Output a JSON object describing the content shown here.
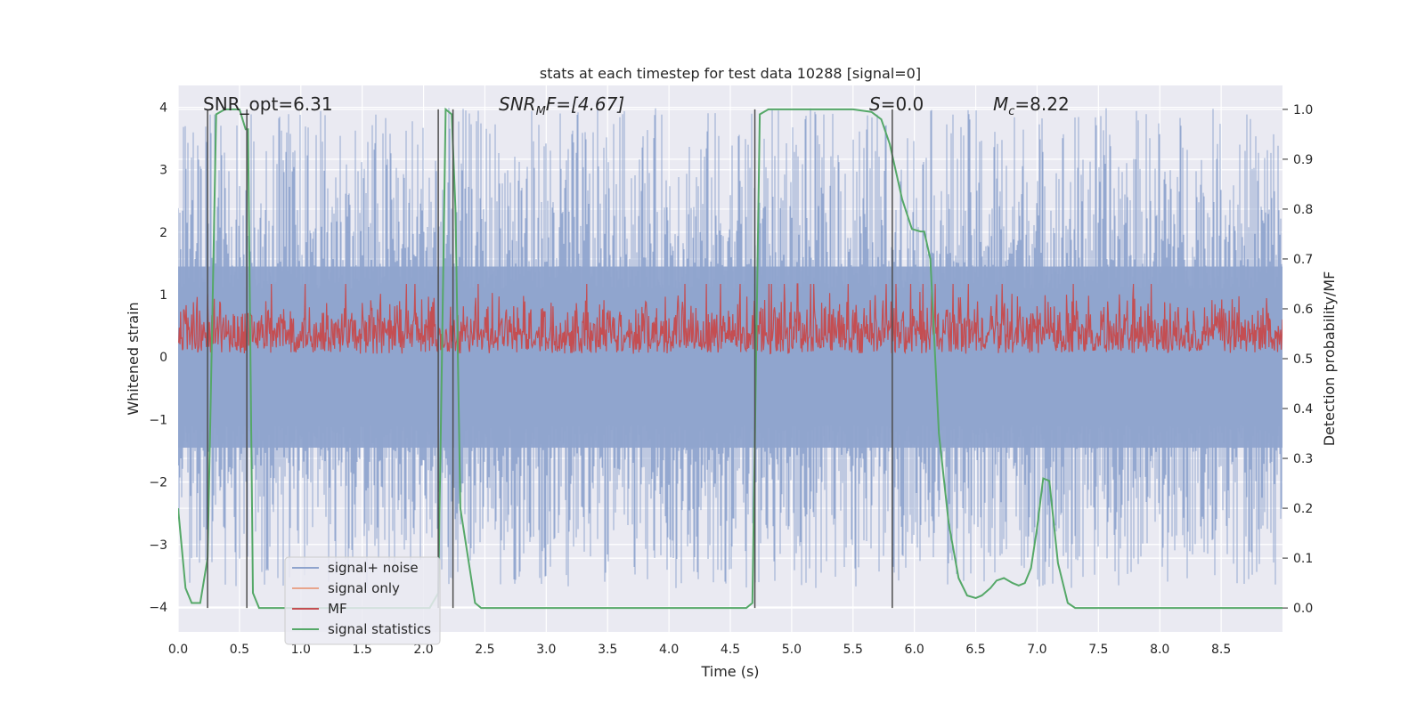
{
  "chart_data": {
    "type": "line",
    "title": "stats at each timestep for test data 10288 [signal=0]",
    "xlabel": "Time (s)",
    "ylabel": "Whitened strain",
    "y2label": "Detection probability/MF",
    "xlim": [
      0,
      9
    ],
    "ylim": [
      -4.4,
      4.35
    ],
    "y2lim": [
      -0.048,
      1.048
    ],
    "xticks": [
      "0.0",
      "0.5",
      "1.0",
      "1.5",
      "2.0",
      "2.5",
      "3.0",
      "3.5",
      "4.0",
      "4.5",
      "5.0",
      "5.5",
      "6.0",
      "6.5",
      "7.0",
      "7.5",
      "8.0",
      "8.5"
    ],
    "yticks": [
      "4",
      "3",
      "2",
      "1",
      "0",
      "−1",
      "−2",
      "−3",
      "−4"
    ],
    "y2ticks": [
      "1.0",
      "0.9",
      "0.8",
      "0.7",
      "0.6",
      "0.5",
      "0.4",
      "0.3",
      "0.2",
      "0.1",
      "0.0"
    ],
    "grid": true,
    "legend_position": "lower-left",
    "annotations": {
      "snr_opt": "SNR_opt=6.31",
      "snr_mf": {
        "main": "SNR",
        "sub": "M",
        "rest": "F=[4.67]"
      },
      "s_value": {
        "main": "S",
        "rest": "=0.0"
      },
      "mc_value": {
        "main": "M",
        "sub": "c",
        "rest": "=8.22"
      }
    },
    "colors": {
      "noise": "#8fa4cd",
      "signal": "#e8a58c",
      "mf": "#c44e52",
      "stats": "#55a868",
      "vline": "#4d4d4d",
      "background": "#eaeaf2",
      "grid": "#ffffff"
    },
    "series": [
      {
        "name": "signal+ noise",
        "kind": "noise",
        "amplitude_range": [
          -3.7,
          4.0
        ]
      },
      {
        "name": "signal only",
        "kind": "signal",
        "values": []
      },
      {
        "name": "MF",
        "kind": "mf",
        "axis": "y2",
        "mean": 0.545,
        "amplitude_range": [
          0.51,
          0.64
        ]
      },
      {
        "name": "signal statistics",
        "kind": "stats",
        "axis": "y2",
        "x": [
          0.0,
          0.06,
          0.11,
          0.18,
          0.24,
          0.28,
          0.31,
          0.38,
          0.5,
          0.55,
          0.57,
          0.61,
          0.66,
          1.0,
          2.05,
          2.12,
          2.15,
          2.18,
          2.23,
          2.26,
          2.3,
          2.42,
          2.47,
          2.5,
          3.0,
          4.0,
          4.5,
          4.63,
          4.68,
          4.74,
          4.81,
          5.0,
          5.5,
          5.65,
          5.73,
          5.8,
          5.9,
          5.98,
          6.05,
          6.08,
          6.13,
          6.2,
          6.28,
          6.36,
          6.43,
          6.5,
          6.55,
          6.62,
          6.67,
          6.73,
          6.8,
          6.85,
          6.9,
          6.95,
          7.0,
          7.05,
          7.1,
          7.17,
          7.25,
          7.31,
          7.5,
          8.0,
          8.5,
          9.0
        ],
        "values": [
          0.2,
          0.04,
          0.01,
          0.01,
          0.1,
          0.6,
          0.99,
          1.0,
          1.0,
          0.96,
          0.96,
          0.03,
          0.0,
          0.0,
          0.0,
          0.03,
          0.5,
          1.0,
          0.99,
          0.8,
          0.2,
          0.01,
          0.0,
          0.0,
          0.0,
          0.0,
          0.0,
          0.0,
          0.01,
          0.99,
          1.0,
          1.0,
          1.0,
          0.995,
          0.98,
          0.93,
          0.82,
          0.76,
          0.755,
          0.755,
          0.7,
          0.35,
          0.17,
          0.06,
          0.025,
          0.02,
          0.025,
          0.04,
          0.055,
          0.06,
          0.05,
          0.045,
          0.05,
          0.08,
          0.16,
          0.26,
          0.255,
          0.09,
          0.01,
          0.0,
          0.0,
          0.0,
          0.0,
          0.0
        ]
      }
    ],
    "vlines": [
      0.24,
      0.56,
      2.12,
      2.24,
      4.7,
      5.82
    ]
  }
}
